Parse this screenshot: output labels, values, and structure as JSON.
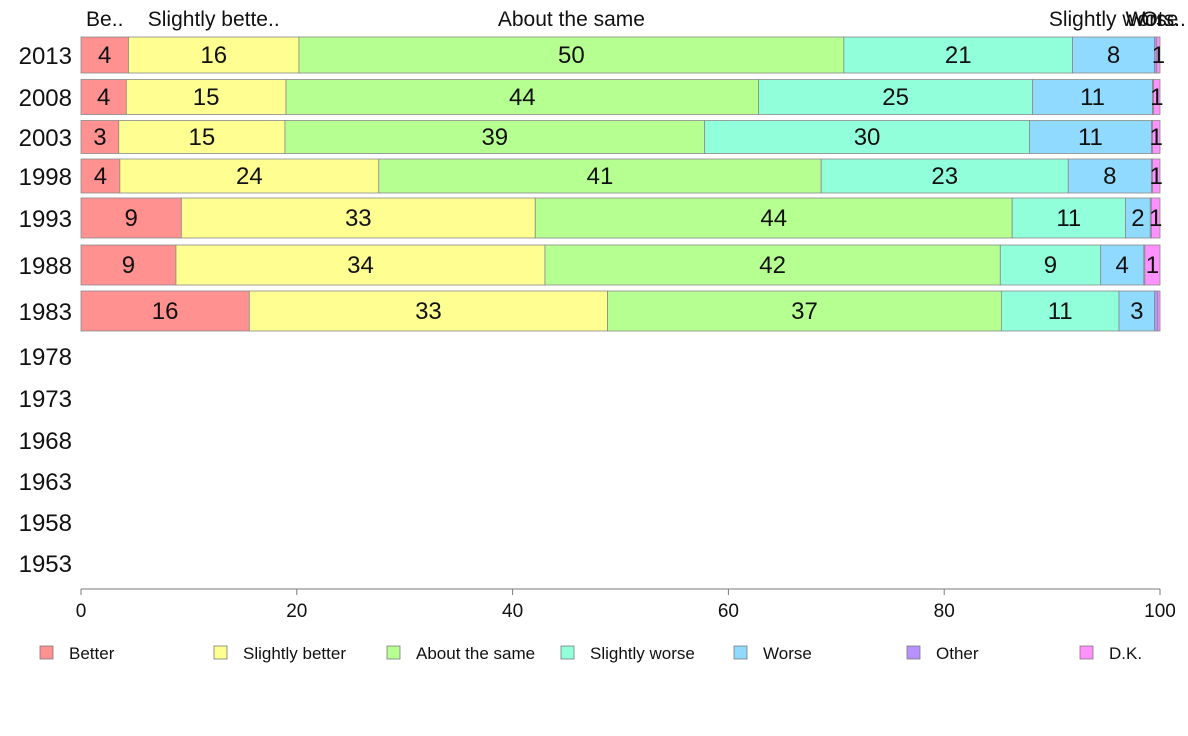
{
  "chart_data": {
    "type": "bar",
    "orientation": "horizontal",
    "stacked": true,
    "title": "",
    "xlabel": "",
    "ylabel": "",
    "xlim": [
      0,
      100
    ],
    "x_ticks": [
      0,
      20,
      40,
      60,
      80,
      100
    ],
    "grid": false,
    "legend_position": "bottom",
    "categories": [
      "2013",
      "2008",
      "2003",
      "1998",
      "1993",
      "1988",
      "1983",
      "1978",
      "1973",
      "1968",
      "1963",
      "1958",
      "1953"
    ],
    "top_labels": [
      "Be..",
      "Slightly bette..",
      "About the same",
      "",
      "Slightly worse",
      "Wors..",
      "Ot.."
    ],
    "series": [
      {
        "name": "Better",
        "color": "#ff9191",
        "values": [
          4.4,
          4.2,
          3.5,
          3.6,
          9.3,
          8.8,
          15.6,
          null,
          null,
          null,
          null,
          null,
          null
        ]
      },
      {
        "name": "Slightly better",
        "color": "#ffff91",
        "values": [
          15.8,
          14.8,
          15.4,
          24.0,
          32.8,
          34.2,
          33.2,
          null,
          null,
          null,
          null,
          null,
          null
        ]
      },
      {
        "name": "About the same",
        "color": "#b6ff91",
        "values": [
          50.5,
          43.8,
          38.9,
          41.0,
          44.2,
          42.2,
          36.5,
          null,
          null,
          null,
          null,
          null,
          null
        ]
      },
      {
        "name": "Slightly worse",
        "color": "#91ffda",
        "values": [
          21.2,
          25.4,
          30.1,
          22.9,
          10.5,
          9.3,
          10.9,
          null,
          null,
          null,
          null,
          null,
          null
        ]
      },
      {
        "name": "Worse",
        "color": "#91daff",
        "values": [
          7.6,
          11.1,
          11.3,
          7.7,
          2.3,
          4.0,
          3.3,
          null,
          null,
          null,
          null,
          null,
          null
        ]
      },
      {
        "name": "Other",
        "color": "#b691ff",
        "values": [
          0.2,
          0.1,
          0.1,
          0.1,
          0.1,
          0.1,
          0.3,
          null,
          null,
          null,
          null,
          null,
          null
        ]
      },
      {
        "name": "D.K.",
        "color": "#ff91ff",
        "values": [
          0.3,
          0.6,
          0.7,
          0.7,
          0.8,
          1.4,
          0.2,
          null,
          null,
          null,
          null,
          null,
          null
        ]
      }
    ],
    "data_labels": [
      [
        "4",
        "16",
        "50",
        "21",
        "8",
        "",
        "1"
      ],
      [
        "4",
        "15",
        "44",
        "25",
        "11",
        "",
        "1"
      ],
      [
        "3",
        "15",
        "39",
        "30",
        "11",
        "",
        "1"
      ],
      [
        "4",
        "24",
        "41",
        "23",
        "8",
        "",
        "1"
      ],
      [
        "9",
        "33",
        "44",
        "11",
        "2",
        "",
        "1"
      ],
      [
        "9",
        "34",
        "42",
        "9",
        "4",
        "",
        "1"
      ],
      [
        "16",
        "33",
        "37",
        "11",
        "3",
        "",
        ""
      ]
    ]
  }
}
